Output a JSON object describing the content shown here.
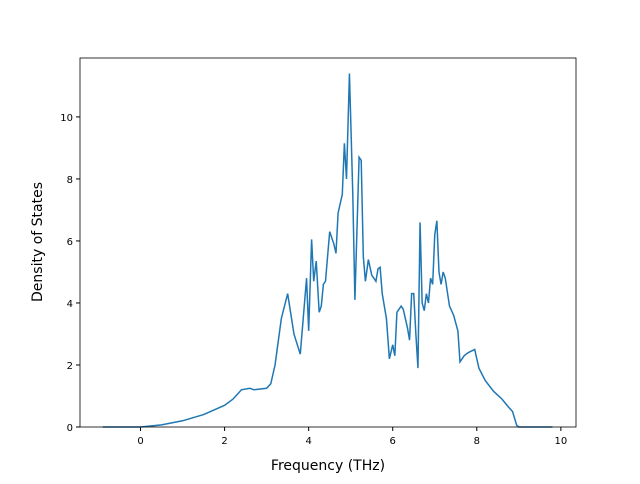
{
  "chart_data": {
    "type": "line",
    "xlabel": "Frequency (THz)",
    "ylabel": "Density of States",
    "x": [
      -0.9,
      0,
      0.5,
      1.0,
      1.5,
      2.0,
      2.2,
      2.3,
      2.4,
      2.6,
      2.7,
      3.0,
      3.1,
      3.2,
      3.25,
      3.35,
      3.5,
      3.65,
      3.8,
      3.95,
      4.0,
      4.07,
      4.12,
      4.18,
      4.25,
      4.3,
      4.35,
      4.4,
      4.5,
      4.6,
      4.65,
      4.7,
      4.8,
      4.85,
      4.9,
      4.97,
      5.05,
      5.1,
      5.2,
      5.25,
      5.3,
      5.35,
      5.42,
      5.5,
      5.6,
      5.65,
      5.7,
      5.75,
      5.85,
      5.92,
      6.0,
      6.05,
      6.1,
      6.2,
      6.25,
      6.35,
      6.4,
      6.45,
      6.5,
      6.55,
      6.6,
      6.65,
      6.7,
      6.75,
      6.8,
      6.85,
      6.9,
      6.95,
      7.0,
      7.05,
      7.1,
      7.15,
      7.2,
      7.25,
      7.35,
      7.45,
      7.55,
      7.6,
      7.7,
      7.8,
      7.95,
      8.05,
      8.2,
      8.4,
      8.6,
      8.75,
      8.85,
      8.95,
      9.0,
      9.8
    ],
    "series": [
      {
        "color": "#1f77b4",
        "values": [
          0,
          0,
          0.07,
          0.2,
          0.4,
          0.7,
          0.9,
          1.05,
          1.2,
          1.25,
          1.2,
          1.25,
          1.4,
          2.0,
          2.5,
          3.5,
          4.3,
          3.0,
          2.35,
          4.8,
          3.1,
          6.05,
          4.7,
          5.35,
          3.7,
          3.9,
          4.6,
          4.7,
          6.3,
          5.9,
          5.6,
          6.9,
          7.5,
          9.15,
          8.0,
          11.4,
          7.5,
          4.1,
          8.7,
          8.6,
          5.5,
          4.7,
          5.4,
          4.9,
          4.7,
          5.1,
          5.15,
          4.3,
          3.5,
          2.2,
          2.65,
          2.3,
          3.7,
          3.9,
          3.8,
          3.2,
          2.8,
          4.3,
          4.3,
          3.0,
          1.9,
          6.6,
          4.0,
          3.75,
          4.3,
          4.0,
          4.8,
          4.6,
          6.2,
          6.65,
          5.0,
          4.6,
          5.0,
          4.8,
          3.9,
          3.6,
          3.1,
          2.1,
          2.3,
          2.4,
          2.5,
          1.9,
          1.5,
          1.15,
          0.9,
          0.65,
          0.5,
          0.05,
          0,
          0
        ]
      }
    ],
    "xlim": [
      -1.44,
      10.36
    ],
    "ylim": [
      0,
      11.9
    ],
    "xticks": [
      0,
      2,
      4,
      6,
      8,
      10
    ],
    "yticks": [
      0,
      2,
      4,
      6,
      8,
      10
    ]
  }
}
